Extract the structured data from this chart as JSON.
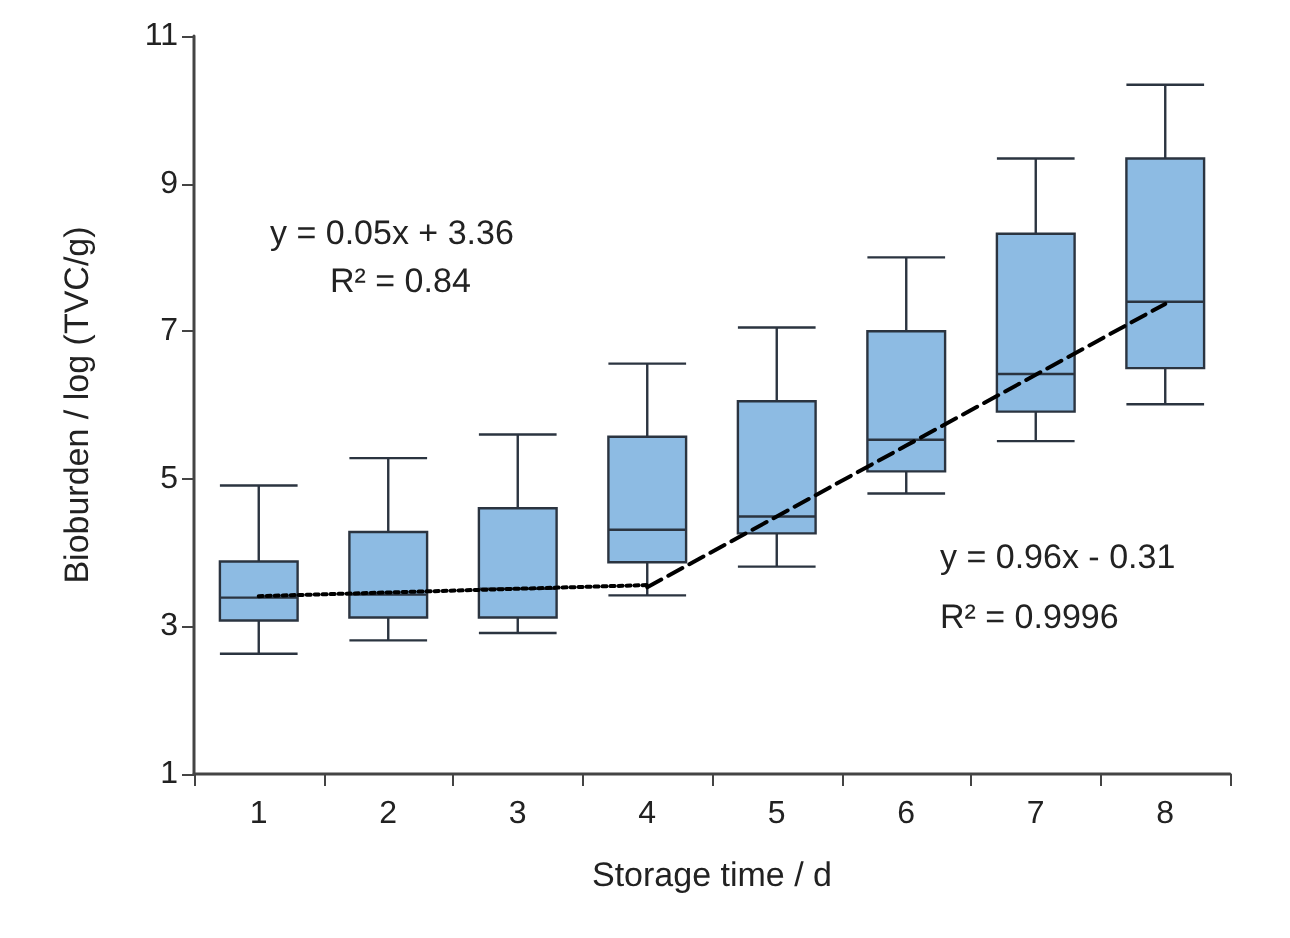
{
  "chart_data": {
    "type": "box",
    "xlabel": "Storage time / d",
    "ylabel": "Bioburden / log (TVC/g)",
    "categories": [
      "1",
      "2",
      "3",
      "4",
      "5",
      "6",
      "7",
      "8"
    ],
    "ylim": [
      1,
      11
    ],
    "yticks": [
      1,
      3,
      5,
      7,
      9,
      11
    ],
    "grid": false,
    "series": [
      {
        "color": "#8dbbe3",
        "boxes": [
          {
            "low": 2.63,
            "q1": 3.08,
            "median": 3.39,
            "q3": 3.88,
            "high": 4.91
          },
          {
            "low": 2.81,
            "q1": 3.12,
            "median": 3.43,
            "q3": 4.28,
            "high": 5.28
          },
          {
            "low": 2.91,
            "q1": 3.12,
            "median": 3.51,
            "q3": 4.6,
            "high": 5.6
          },
          {
            "low": 3.42,
            "q1": 3.87,
            "median": 4.31,
            "q3": 5.57,
            "high": 6.56
          },
          {
            "low": 3.81,
            "q1": 4.26,
            "median": 4.49,
            "q3": 6.05,
            "high": 7.05
          },
          {
            "low": 4.8,
            "q1": 5.1,
            "median": 5.53,
            "q3": 7.0,
            "high": 8.0
          },
          {
            "low": 5.51,
            "q1": 5.91,
            "median": 6.42,
            "q3": 8.32,
            "high": 9.34
          },
          {
            "low": 6.01,
            "q1": 6.5,
            "median": 7.4,
            "q3": 9.34,
            "high": 10.34
          }
        ]
      },
      {
        "type": "line",
        "color": "#000000",
        "line_style": "dotted",
        "marker": "none",
        "values": [
          3.41,
          3.46,
          3.51,
          3.56,
          null,
          null,
          null,
          null
        ]
      },
      {
        "type": "line",
        "color": "#000000",
        "line_style": "dashed",
        "marker": "none",
        "values": [
          null,
          null,
          null,
          3.53,
          4.49,
          5.45,
          6.41,
          7.37
        ]
      }
    ],
    "annotations": [
      "y = 0.05x + 3.36",
      "R² = 0.84",
      "y = 0.96x - 0.31",
      "R² = 0.9996"
    ]
  }
}
